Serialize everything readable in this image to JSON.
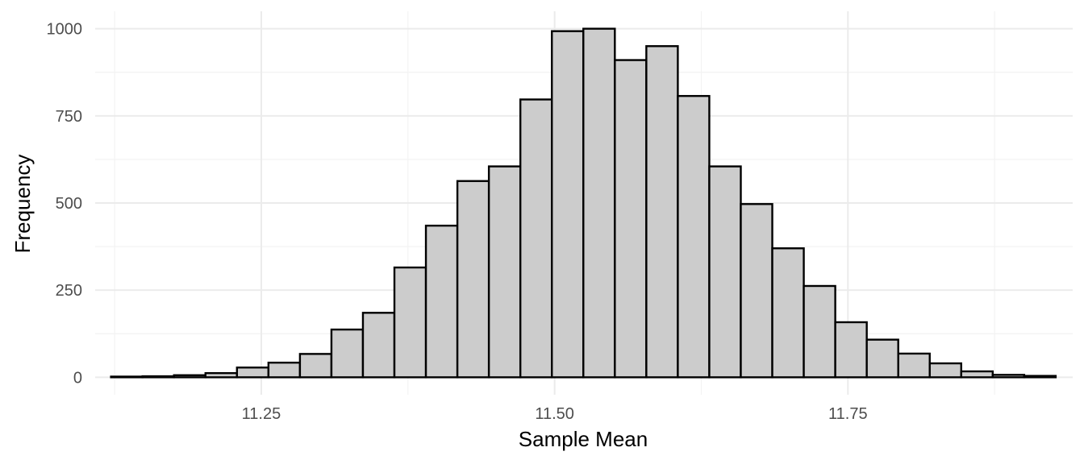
{
  "chart_data": {
    "type": "bar",
    "subtype": "histogram",
    "xlabel": "Sample Mean",
    "ylabel": "Frequency",
    "xlim": [
      11.1084,
      11.9416
    ],
    "ylim": [
      -50,
      1050
    ],
    "x_ticks": [
      11.25,
      11.5,
      11.75
    ],
    "x_tick_labels": [
      "11.25",
      "11.50",
      "11.75"
    ],
    "y_ticks": [
      0,
      250,
      500,
      750,
      1000
    ],
    "y_tick_labels": [
      "0",
      "250",
      "500",
      "750",
      "1000"
    ],
    "grid": true,
    "legend": "none",
    "bin_width": 0.02684,
    "bin_starts": [
      11.1219,
      11.14874,
      11.17558,
      11.20242,
      11.22926,
      11.2561,
      11.28294,
      11.30978,
      11.33662,
      11.36346,
      11.3903,
      11.41714,
      11.44398,
      11.47082,
      11.49766,
      11.5245,
      11.55134,
      11.57818,
      11.60502,
      11.63186,
      11.6587,
      11.68554,
      11.71238,
      11.73922,
      11.76606,
      11.7929,
      11.81974,
      11.84658,
      11.87342,
      11.90026
    ],
    "values": [
      2,
      3,
      6,
      12,
      28,
      42,
      67,
      137,
      185,
      315,
      435,
      563,
      605,
      797,
      993,
      1000,
      910,
      950,
      807,
      605,
      497,
      370,
      262,
      158,
      108,
      68,
      40,
      17,
      7,
      4
    ],
    "colors": {
      "bar_fill": "#cccccc",
      "bar_stroke": "#000000",
      "grid": "#ebebeb",
      "tick_text": "#4d4d4d"
    }
  }
}
